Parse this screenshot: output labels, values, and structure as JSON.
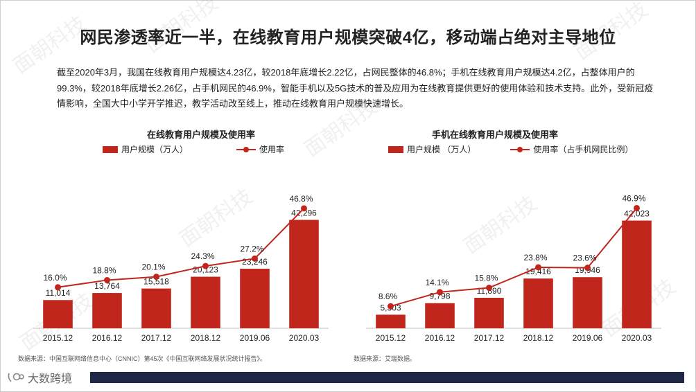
{
  "title": "网民渗透率近一半，在线教育用户规模突破4亿，移动端占绝对主导地位",
  "intro": "截至2020年3月，我国在线教育用户规模达4.23亿，较2018年底增长2.22亿，占网民整体的46.8%；手机在线教育用户规模达4.2亿，占整体用户的99.3%，较2018年底增长2.26亿，占手机网民的46.9%，智能手机以及5G技术的普及应用为在线教育提供更好的使用体验和技术支持。此外，受新冠疫情影响，全国大中小学开学推迟，教学活动改至线上，推动在线教育用户规模快速增长。",
  "watermark": "面朝科技",
  "footer": {
    "logo_text": "大数跨境"
  },
  "colors": {
    "accent": "#c0261b",
    "footer": "#1f2844"
  },
  "chart_data": [
    {
      "type": "bar",
      "title": "在线教育用户规模及使用率",
      "categories": [
        "2015.12",
        "2016.12",
        "2017.12",
        "2018.12",
        "2019.06",
        "2020.03"
      ],
      "series": [
        {
          "name": "用户规模（万人）",
          "type": "bar",
          "values": [
            11014,
            13764,
            15518,
            20123,
            23246,
            42296
          ],
          "labels": [
            "11,014",
            "13,764",
            "15,518",
            "20,123",
            "23,246",
            "42,296"
          ]
        },
        {
          "name": "使用率",
          "type": "line",
          "values": [
            16.0,
            18.8,
            20.1,
            24.3,
            27.2,
            46.8
          ],
          "labels": [
            "16.0%",
            "18.8%",
            "20.1%",
            "24.3%",
            "27.2%",
            "46.8%"
          ]
        }
      ],
      "ylim_bar": [
        0,
        60000
      ],
      "ylim_line": [
        0,
        60
      ],
      "legend": "top",
      "grid": false,
      "source": "数据来源：中国互联网络信息中心（CNNIC）第45次《中国互联网络发展状况统计报告》。"
    },
    {
      "type": "bar",
      "title": "手机在线教育用户规模及使用率",
      "categories": [
        "2015.12",
        "2016.12",
        "2017.12",
        "2018.12",
        "2019.06",
        "2020.03"
      ],
      "series": [
        {
          "name": "用户规模 （万人）",
          "type": "bar",
          "values": [
            5303,
            9798,
            11890,
            19416,
            19946,
            42023
          ],
          "labels": [
            "5,303",
            "9,798",
            "11,890",
            "19,416",
            "19,946",
            "42,023"
          ]
        },
        {
          "name": "使用率（占手机网民比例）",
          "type": "line",
          "values": [
            8.6,
            14.1,
            15.8,
            23.8,
            23.6,
            46.9
          ],
          "labels": [
            "8.6%",
            "14.1%",
            "15.8%",
            "23.8%",
            "23.6%",
            "46.9%"
          ]
        }
      ],
      "ylim_bar": [
        0,
        60000
      ],
      "ylim_line": [
        0,
        60
      ],
      "legend": "top",
      "grid": false,
      "source": "数据来源：艾瑞数据。"
    }
  ]
}
